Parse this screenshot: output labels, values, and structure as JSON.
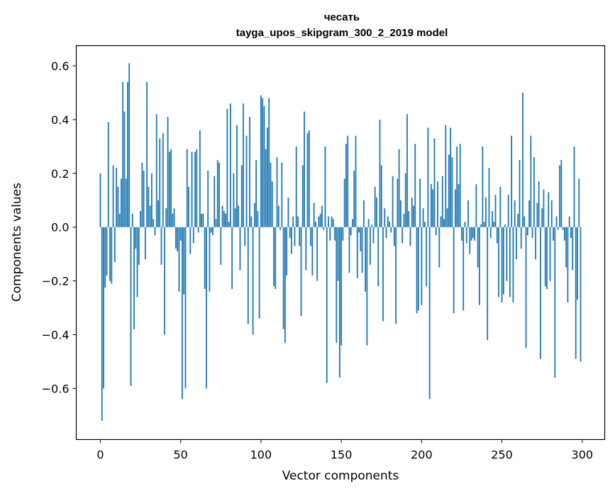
{
  "chart_data": {
    "type": "bar",
    "title": "чесать",
    "subtitle": "tayga_upos_skipgram_300_2_2019 model",
    "xlabel": "Vector components",
    "ylabel": "Components values",
    "xlim": [
      -15,
      314
    ],
    "ylim": [
      -0.79,
      0.675
    ],
    "xticks": [
      0,
      50,
      100,
      150,
      200,
      250,
      300
    ],
    "yticks": [
      -0.6,
      -0.4,
      -0.2,
      0.0,
      0.2,
      0.4,
      0.6
    ],
    "xtick_labels": [
      "0",
      "50",
      "100",
      "150",
      "200",
      "250",
      "300"
    ],
    "ytick_labels": [
      "−0.6",
      "−0.4",
      "−0.2",
      "0.0",
      "0.2",
      "0.4",
      "0.6"
    ],
    "color": "#1f77b4",
    "values": [
      0.2,
      -0.72,
      -0.6,
      -0.225,
      -0.18,
      0.39,
      -0.2,
      -0.21,
      0.23,
      -0.13,
      0.22,
      0.15,
      0.05,
      0.18,
      0.54,
      0.43,
      0.18,
      0.54,
      0.61,
      -0.59,
      0.05,
      -0.38,
      -0.08,
      -0.26,
      -0.14,
      0.06,
      0.24,
      0.21,
      -0.12,
      0.54,
      0.15,
      0.08,
      0.2,
      0.03,
      -0.03,
      0.42,
      0.1,
      0.33,
      -0.14,
      0.35,
      -0.4,
      0.07,
      0.41,
      0.28,
      0.29,
      0.05,
      0.07,
      -0.08,
      -0.09,
      -0.24,
      -0.05,
      -0.64,
      -0.25,
      -0.6,
      0.29,
      0.15,
      -0.1,
      0.28,
      -0.06,
      0.28,
      0.29,
      -0.02,
      0.36,
      0.05,
      0.05,
      -0.23,
      -0.6,
      0.21,
      -0.24,
      -0.02,
      -0.03,
      0.19,
      0.03,
      0.25,
      0.24,
      -0.14,
      0.08,
      0.06,
      0.05,
      0.44,
      0.02,
      0.46,
      -0.23,
      0.2,
      0.07,
      0.38,
      0.08,
      -0.16,
      0.23,
      0.46,
      -0.07,
      0.34,
      -0.36,
      0.41,
      0.04,
      -0.4,
      0.09,
      0.25,
      0.06,
      -0.34,
      0.49,
      0.48,
      0.45,
      0.29,
      0.37,
      0.48,
      0.24,
      0.17,
      -0.22,
      -0.23,
      0.26,
      0.08,
      -0.01,
      0.24,
      -0.38,
      -0.43,
      -0.18,
      0.11,
      -0.04,
      -0.1,
      0.04,
      -0.07,
      0.3,
      0.04,
      -0.07,
      -0.33,
      0.23,
      0.43,
      -0.16,
      0.35,
      0.36,
      -0.07,
      -0.18,
      0.09,
      0.02,
      -0.2,
      0.04,
      0.05,
      0.08,
      -0.01,
      0.3,
      -0.58,
      0.04,
      -0.05,
      0.04,
      0.03,
      -0.05,
      -0.43,
      -0.2,
      -0.56,
      -0.44,
      -0.05,
      0.18,
      0.31,
      0.34,
      -0.17,
      -0.03,
      0.03,
      0.21,
      0.34,
      -0.19,
      -0.02,
      -0.09,
      -0.17,
      0.1,
      -0.24,
      -0.44,
      0.03,
      -0.14,
      0.01,
      -0.06,
      0.15,
      0.11,
      -0.22,
      0.4,
      0.23,
      -0.35,
      0.07,
      -0.04,
      0.04,
      0.02,
      -0.02,
      0.19,
      -0.07,
      -0.36,
      0.18,
      0.29,
      0.1,
      -0.06,
      0.05,
      0.2,
      0.42,
      0.06,
      -0.07,
      0.11,
      0.08,
      0.31,
      -0.32,
      -0.31,
      0.18,
      -0.29,
      0.07,
      0.02,
      -0.22,
      0.37,
      -0.64,
      0.16,
      0.14,
      0.33,
      -0.03,
      0.17,
      -0.15,
      0.04,
      0.19,
      0.03,
      0.38,
      0.07,
      0.27,
      0.37,
      0.26,
      -0.32,
      0.14,
      0.3,
      0.16,
      0.31,
      -0.05,
      -0.31,
      0.02,
      -0.06,
      0.1,
      -0.1,
      -0.05,
      -0.04,
      -0.05,
      0.16,
      -0.15,
      -0.29,
      0.01,
      0.3,
      0.02,
      0.11,
      -0.42,
      0.22,
      -0.04,
      0.06,
      0.02,
      0.12,
      -0.06,
      -0.26,
      0.15,
      -0.28,
      -0.25,
      0.01,
      -0.2,
      0.12,
      -0.26,
      0.34,
      -0.28,
      0.1,
      -0.12,
      0.05,
      0.25,
      -0.08,
      0.5,
      0.04,
      -0.45,
      -0.03,
      0.1,
      0.34,
      -0.04,
      0.26,
      -0.12,
      0.09,
      0.17,
      -0.49,
      0.07,
      0.14,
      -0.22,
      -0.23,
      0.13,
      -0.2,
      0.1,
      -0.05,
      -0.56,
      0.04,
      -0.01,
      0.23,
      0.25,
      -0.01,
      -0.05,
      -0.15,
      -0.28,
      0.04,
      -0.04,
      -0.16,
      0.3,
      -0.49,
      -0.27,
      0.18,
      -0.5
    ]
  }
}
